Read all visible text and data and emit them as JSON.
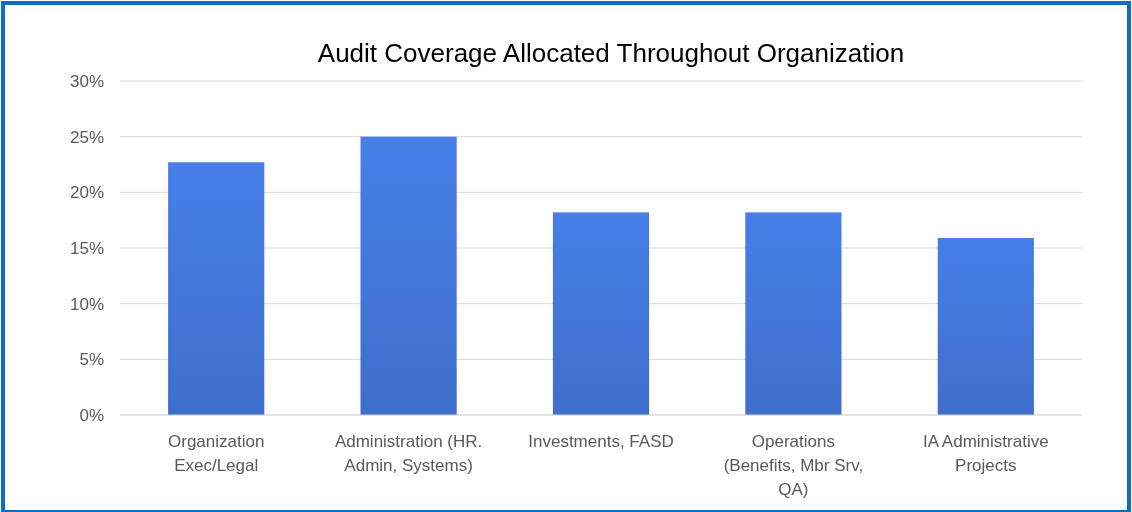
{
  "chart_data": {
    "type": "bar",
    "title": "Audit Coverage Allocated Throughout Organization",
    "categories": [
      "Organization Exec/Legal",
      "Administration (HR. Admin, Systems)",
      "Investments, FASD",
      "Operations (Benefits, Mbr Srv, QA)",
      "IA Administrative Projects"
    ],
    "values": [
      22.7,
      25.0,
      18.2,
      18.2,
      15.9
    ],
    "color": "#3f6fcc",
    "ylim": [
      0,
      30
    ],
    "yticks": [
      {
        "value": 0,
        "label": "0%"
      },
      {
        "value": 5,
        "label": "5%"
      },
      {
        "value": 10,
        "label": "10%"
      },
      {
        "value": 15,
        "label": "15%"
      },
      {
        "value": 20,
        "label": "20%"
      },
      {
        "value": 25,
        "label": "25%"
      },
      {
        "value": 30,
        "label": "30%"
      }
    ],
    "grid": "y"
  }
}
